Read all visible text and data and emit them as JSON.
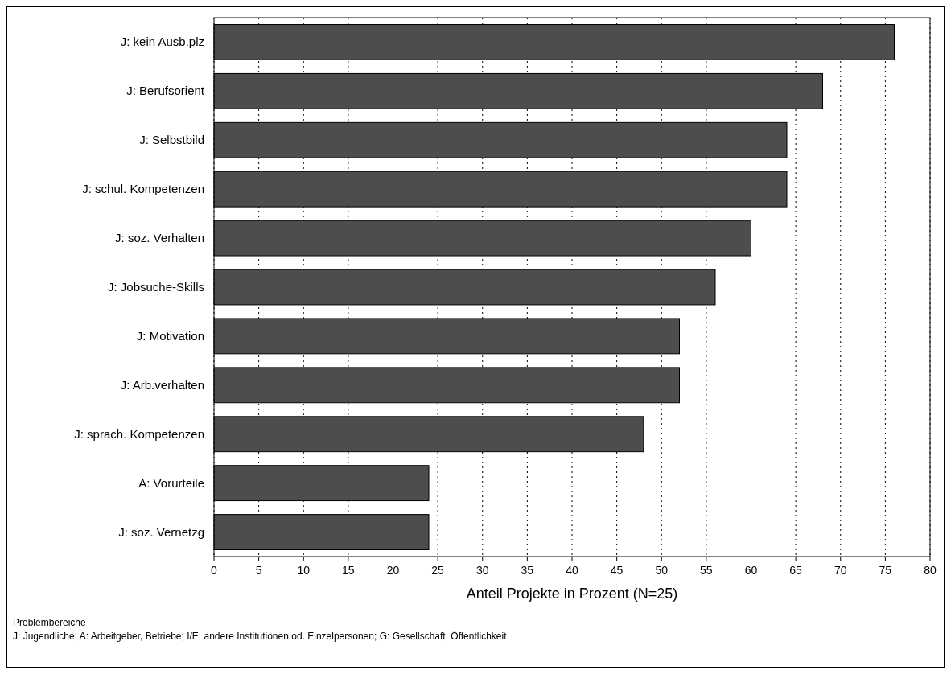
{
  "chart_data": {
    "type": "bar",
    "orientation": "horizontal",
    "xlabel": "Anteil Projekte in Prozent (N=25)",
    "categories": [
      "J: kein Ausb.plz",
      "J: Berufsorient",
      "J: Selbstbild",
      "J: schul. Kompetenzen",
      "J: soz. Verhalten",
      "J: Jobsuche-Skills",
      "J: Motivation",
      "J: Arb.verhalten",
      "J: sprach. Kompetenzen",
      "A: Vorurteile",
      "J: soz. Vernetzg"
    ],
    "values": [
      76,
      68,
      64,
      64,
      60,
      56,
      52,
      52,
      48,
      24,
      24
    ],
    "color": "#4d4d4d",
    "xlim": [
      0,
      80
    ],
    "xticks": [
      0,
      5,
      10,
      15,
      20,
      25,
      30,
      35,
      40,
      45,
      50,
      55,
      60,
      65,
      70,
      75,
      80
    ],
    "grid": "x",
    "annotations": [
      "Problembereiche",
      "J: Jugendliche;  A: Arbeitgeber, Betriebe;  I/E: andere Institutionen od. Einzelpersonen;  G: Gesellschaft, Öffentlichkeit"
    ]
  }
}
